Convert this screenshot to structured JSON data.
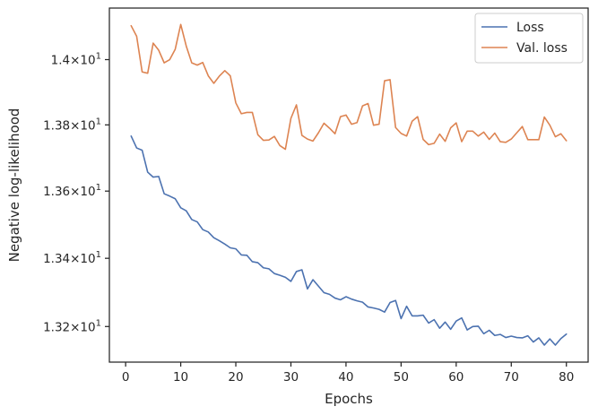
{
  "chart_data": {
    "type": "line",
    "title": "",
    "xlabel": "Epochs",
    "ylabel": "Negative log-likelihood",
    "yscale": "log",
    "grid": false,
    "legend_position": "top-right",
    "xlim": [
      -2.95,
      83.95
    ],
    "ylim": [
      13.0968,
      14.16
    ],
    "x_ticks": [
      0,
      10,
      20,
      30,
      40,
      50,
      60,
      70,
      80
    ],
    "x_tick_labels": [
      "0",
      "10",
      "20",
      "30",
      "40",
      "50",
      "60",
      "70",
      "80"
    ],
    "y_ticks": [
      {
        "value": 13.2,
        "mantissa": "1.32"
      },
      {
        "value": 13.4,
        "mantissa": "1.34"
      },
      {
        "value": 13.6,
        "mantissa": "1.36"
      },
      {
        "value": 13.8,
        "mantissa": "1.38"
      },
      {
        "value": 14.0,
        "mantissa": "1.4"
      }
    ],
    "y_tick_suffix": {
      "times": "×",
      "base": "10",
      "exponent": "1"
    },
    "x": [
      1,
      2,
      3,
      4,
      5,
      6,
      7,
      8,
      9,
      10,
      11,
      12,
      13,
      14,
      15,
      16,
      17,
      18,
      19,
      20,
      21,
      22,
      23,
      24,
      25,
      26,
      27,
      28,
      29,
      30,
      31,
      32,
      33,
      34,
      35,
      36,
      37,
      38,
      39,
      40,
      41,
      42,
      43,
      44,
      45,
      46,
      47,
      48,
      49,
      50,
      51,
      52,
      53,
      54,
      55,
      56,
      57,
      58,
      59,
      60,
      61,
      62,
      63,
      64,
      65,
      66,
      67,
      68,
      69,
      70,
      71,
      72,
      73,
      74,
      75,
      76,
      77,
      78,
      79,
      80
    ],
    "series": [
      {
        "name": "Loss",
        "color": "#4c72b0",
        "values": [
          13.766,
          13.73,
          13.723,
          13.657,
          13.642,
          13.644,
          13.592,
          13.585,
          13.577,
          13.55,
          13.541,
          13.515,
          13.508,
          13.485,
          13.478,
          13.461,
          13.452,
          13.442,
          13.431,
          13.428,
          13.41,
          13.409,
          13.39,
          13.387,
          13.372,
          13.369,
          13.355,
          13.35,
          13.344,
          13.332,
          13.361,
          13.366,
          13.31,
          13.337,
          13.318,
          13.299,
          13.294,
          13.283,
          13.278,
          13.287,
          13.28,
          13.275,
          13.271,
          13.257,
          13.254,
          13.25,
          13.242,
          13.27,
          13.276,
          13.223,
          13.259,
          13.231,
          13.231,
          13.233,
          13.21,
          13.22,
          13.195,
          13.213,
          13.192,
          13.216,
          13.225,
          13.19,
          13.2,
          13.201,
          13.179,
          13.189,
          13.174,
          13.177,
          13.168,
          13.172,
          13.168,
          13.167,
          13.173,
          13.155,
          13.167,
          13.146,
          13.164,
          13.146,
          13.165,
          13.178
        ]
      },
      {
        "name": "Val. loss",
        "color": "#dd8452",
        "values": [
          14.105,
          14.072,
          13.962,
          13.958,
          14.051,
          14.029,
          13.99,
          14.0,
          14.032,
          14.109,
          14.042,
          13.99,
          13.983,
          13.991,
          13.95,
          13.927,
          13.949,
          13.966,
          13.95,
          13.867,
          13.834,
          13.838,
          13.838,
          13.77,
          13.753,
          13.754,
          13.765,
          13.737,
          13.726,
          13.82,
          13.861,
          13.768,
          13.757,
          13.751,
          13.776,
          13.805,
          13.79,
          13.773,
          13.825,
          13.83,
          13.802,
          13.807,
          13.858,
          13.865,
          13.799,
          13.802,
          13.935,
          13.938,
          13.792,
          13.774,
          13.766,
          13.811,
          13.825,
          13.756,
          13.74,
          13.744,
          13.772,
          13.75,
          13.791,
          13.806,
          13.749,
          13.781,
          13.781,
          13.766,
          13.778,
          13.756,
          13.775,
          13.749,
          13.747,
          13.757,
          13.776,
          13.795,
          13.755,
          13.755,
          13.755,
          13.824,
          13.799,
          13.764,
          13.773,
          13.752
        ]
      }
    ]
  }
}
